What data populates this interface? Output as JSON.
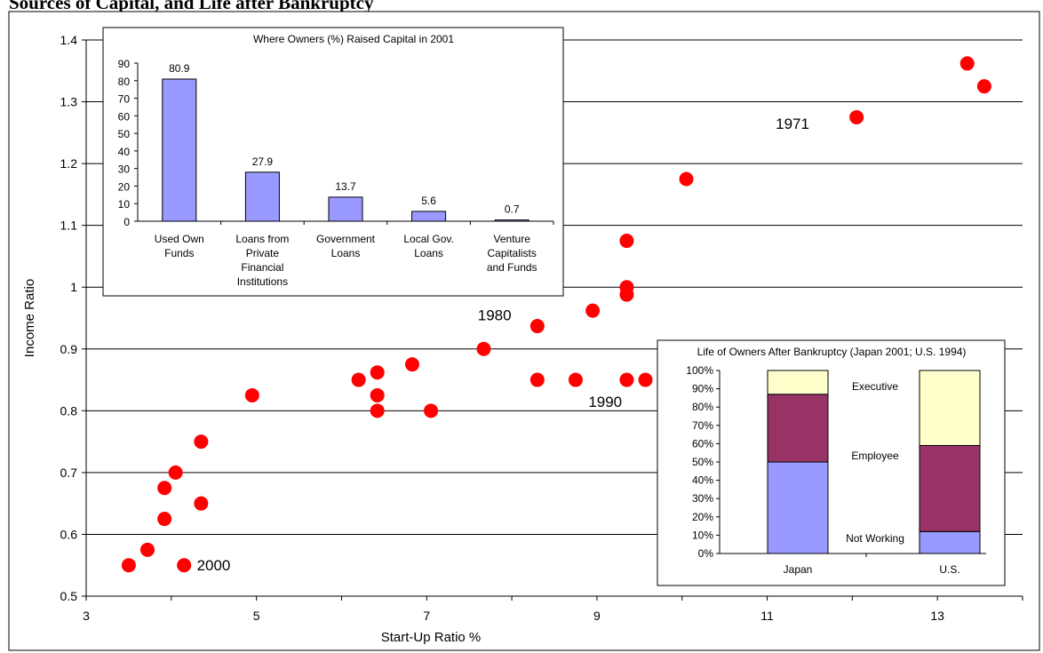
{
  "page": {
    "title": "Sources of Capital, and Life after Bankruptcy"
  },
  "colors": {
    "points": "#ff0000",
    "bars": "#9999ff",
    "employee": "#993366",
    "executive": "#ffffcc",
    "not_working": "#9999ff"
  },
  "chart_data": [
    {
      "type": "scatter",
      "title": "",
      "xlabel": "Start-Up Ratio %",
      "ylabel": "Income Ratio",
      "xlim": [
        3,
        14
      ],
      "ylim": [
        0.5,
        1.4
      ],
      "x_ticks": [
        "3",
        "5",
        "7",
        "9",
        "11",
        "13"
      ],
      "y_ticks": [
        "0.5",
        "0.6",
        "0.7",
        "0.8",
        "0.9",
        "1",
        "1.1",
        "1.2",
        "1.3",
        "1.4"
      ],
      "grid": "horizontal",
      "points": [
        {
          "x": 3.5,
          "y": 0.55
        },
        {
          "x": 3.72,
          "y": 0.575
        },
        {
          "x": 3.92,
          "y": 0.625
        },
        {
          "x": 3.92,
          "y": 0.675
        },
        {
          "x": 4.05,
          "y": 0.7
        },
        {
          "x": 4.15,
          "y": 0.55
        },
        {
          "x": 4.35,
          "y": 0.65
        },
        {
          "x": 4.35,
          "y": 0.75
        },
        {
          "x": 4.95,
          "y": 0.825
        },
        {
          "x": 6.2,
          "y": 0.85
        },
        {
          "x": 6.42,
          "y": 0.8
        },
        {
          "x": 6.42,
          "y": 0.825
        },
        {
          "x": 6.42,
          "y": 0.862
        },
        {
          "x": 6.83,
          "y": 0.875
        },
        {
          "x": 7.05,
          "y": 0.8
        },
        {
          "x": 7.67,
          "y": 0.9
        },
        {
          "x": 8.3,
          "y": 0.85
        },
        {
          "x": 8.3,
          "y": 0.937
        },
        {
          "x": 8.75,
          "y": 0.85
        },
        {
          "x": 8.95,
          "y": 0.962
        },
        {
          "x": 9.35,
          "y": 0.85
        },
        {
          "x": 9.57,
          "y": 0.85
        },
        {
          "x": 9.35,
          "y": 0.988
        },
        {
          "x": 9.35,
          "y": 1.0
        },
        {
          "x": 9.35,
          "y": 1.075
        },
        {
          "x": 10.05,
          "y": 1.175
        },
        {
          "x": 12.05,
          "y": 1.275
        },
        {
          "x": 13.35,
          "y": 1.362
        },
        {
          "x": 13.55,
          "y": 1.325
        }
      ],
      "annotations": [
        {
          "text": "2000",
          "x": 4.3,
          "y": 0.55
        },
        {
          "text": "1980",
          "x": 7.6,
          "y": 0.955
        },
        {
          "text": "1990",
          "x": 8.9,
          "y": 0.815
        },
        {
          "text": "1971",
          "x": 11.1,
          "y": 1.265
        }
      ]
    },
    {
      "type": "bar",
      "title": "Where Owners (%) Raised Capital in 2001",
      "categories": [
        [
          "Used Own",
          "Funds"
        ],
        [
          "Loans from",
          "Private",
          "Financial",
          "Institutions"
        ],
        [
          "Government",
          "Loans"
        ],
        [
          "Local Gov.",
          "Loans"
        ],
        [
          "Venture",
          "Capitalists",
          "and Funds"
        ]
      ],
      "values": [
        80.9,
        27.9,
        13.7,
        5.6,
        0.7
      ],
      "value_labels": [
        "80.9",
        "27.9",
        "13.7",
        "5.6",
        "0.7"
      ],
      "ylim": [
        0,
        90
      ],
      "y_ticks": [
        "0",
        "10",
        "20",
        "30",
        "40",
        "50",
        "60",
        "70",
        "80",
        "90"
      ]
    },
    {
      "type": "stacked-bar",
      "title": "Life of Owners After Bankruptcy (Japan 2001; U.S. 1994)",
      "categories": [
        "Japan",
        "U.S."
      ],
      "series": [
        {
          "name": "Not Working",
          "values": [
            50,
            12
          ]
        },
        {
          "name": "Employee",
          "values": [
            37,
            47
          ]
        },
        {
          "name": "Executive",
          "values": [
            13,
            41
          ]
        }
      ],
      "ylim": [
        0,
        100
      ],
      "y_ticks": [
        "0%",
        "10%",
        "20%",
        "30%",
        "40%",
        "50%",
        "60%",
        "70%",
        "80%",
        "90%",
        "100%"
      ]
    }
  ]
}
